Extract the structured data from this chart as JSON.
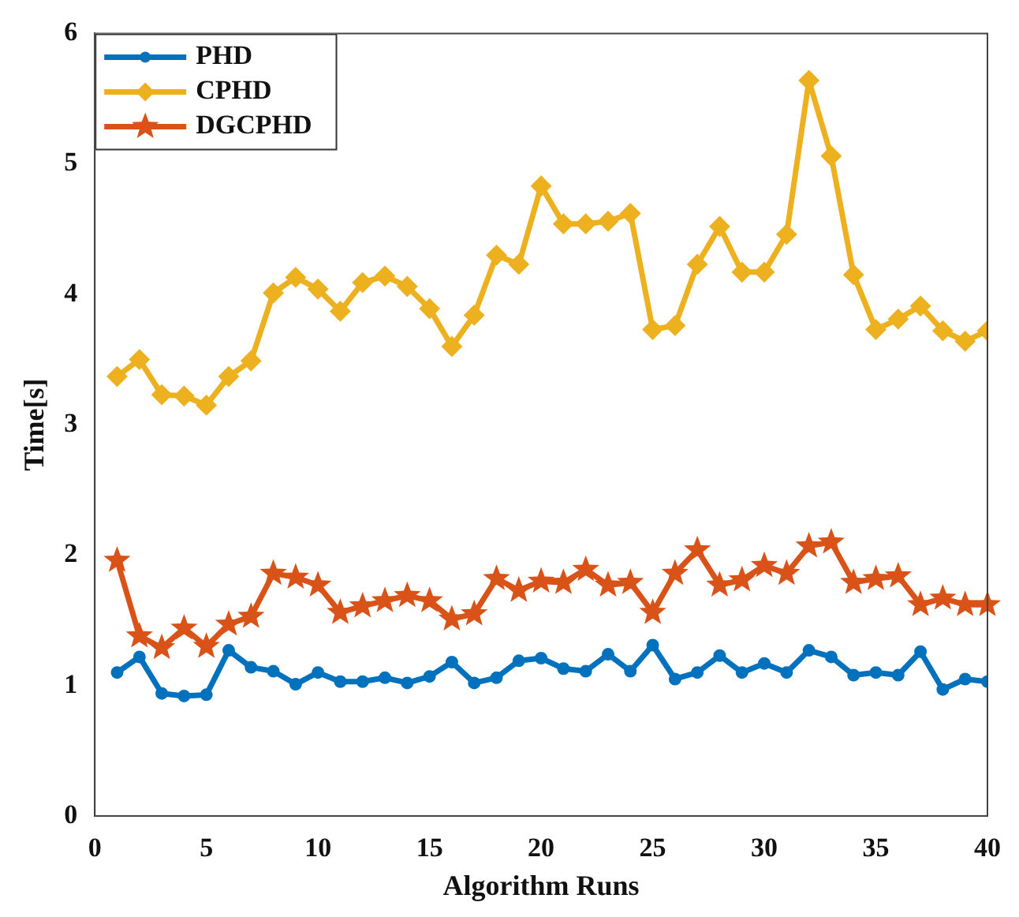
{
  "chart_data": {
    "type": "line",
    "xlabel": "Algorithm Runs",
    "ylabel": "Time[s]",
    "x": [
      1,
      2,
      3,
      4,
      5,
      6,
      7,
      8,
      9,
      10,
      11,
      12,
      13,
      14,
      15,
      16,
      17,
      18,
      19,
      20,
      21,
      22,
      23,
      24,
      25,
      26,
      27,
      28,
      29,
      30,
      31,
      32,
      33,
      34,
      35,
      36,
      37,
      38,
      39,
      40
    ],
    "xlim": [
      0,
      40
    ],
    "xticks": [
      0,
      5,
      10,
      15,
      20,
      25,
      30,
      35,
      40
    ],
    "ylim": [
      0,
      6
    ],
    "yticks": [
      0,
      1,
      2,
      3,
      4,
      5,
      6
    ],
    "grid": false,
    "legend": "top left",
    "line_style": "solid",
    "series": [
      {
        "name": "PHD",
        "color": "#0072bd",
        "marker": "circle",
        "values": [
          1.1,
          1.22,
          0.94,
          0.92,
          0.93,
          1.27,
          1.14,
          1.11,
          1.01,
          1.1,
          1.03,
          1.03,
          1.06,
          1.02,
          1.07,
          1.18,
          1.02,
          1.06,
          1.19,
          1.21,
          1.13,
          1.11,
          1.24,
          1.11,
          1.31,
          1.05,
          1.1,
          1.23,
          1.1,
          1.17,
          1.1,
          1.27,
          1.22,
          1.08,
          1.1,
          1.08,
          1.26,
          0.97,
          1.05,
          1.03
        ]
      },
      {
        "name": "CPHD",
        "color": "#edb120",
        "marker": "diamond",
        "values": [
          3.37,
          3.5,
          3.23,
          3.22,
          3.15,
          3.37,
          3.49,
          4.01,
          4.13,
          4.04,
          3.87,
          4.09,
          4.14,
          4.06,
          3.89,
          3.6,
          3.84,
          4.3,
          4.23,
          4.83,
          4.54,
          4.54,
          4.56,
          4.62,
          3.73,
          3.76,
          4.23,
          4.52,
          4.17,
          4.17,
          4.46,
          5.64,
          5.06,
          4.15,
          3.73,
          3.81,
          3.91,
          3.72,
          3.64,
          3.72
        ]
      },
      {
        "name": "DGCPHD",
        "color": "#d95319",
        "marker": "star",
        "values": [
          1.96,
          1.38,
          1.29,
          1.44,
          1.3,
          1.47,
          1.53,
          1.86,
          1.83,
          1.77,
          1.56,
          1.61,
          1.65,
          1.69,
          1.65,
          1.51,
          1.55,
          1.82,
          1.73,
          1.8,
          1.79,
          1.89,
          1.77,
          1.79,
          1.56,
          1.86,
          2.04,
          1.77,
          1.81,
          1.92,
          1.86,
          2.07,
          2.1,
          1.79,
          1.82,
          1.84,
          1.62,
          1.67,
          1.62,
          1.62
        ]
      }
    ]
  }
}
